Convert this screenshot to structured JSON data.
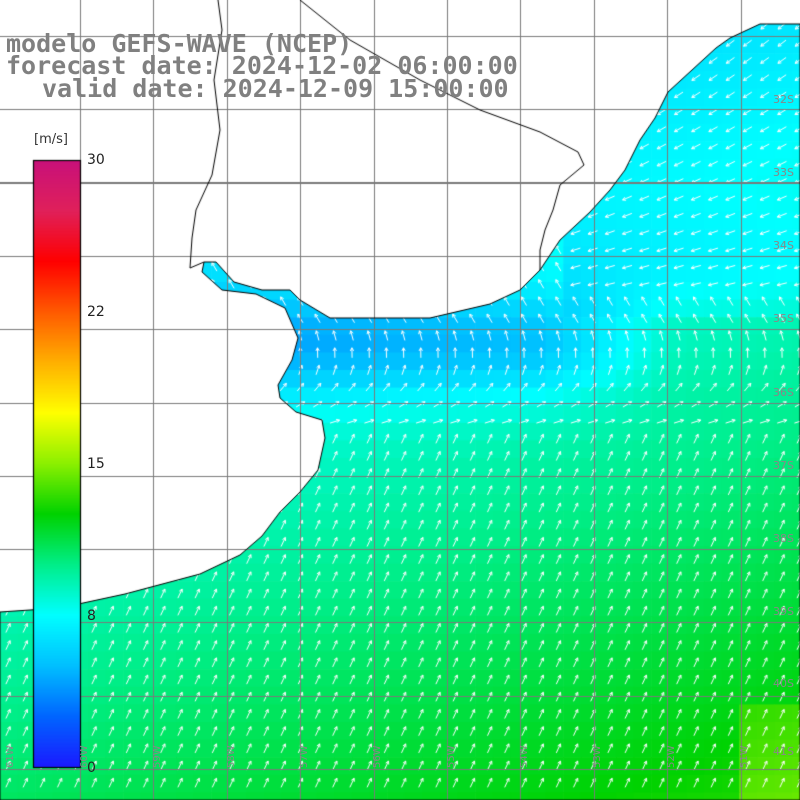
{
  "title": {
    "line1": "modelo GEFS-WAVE (NCEP)",
    "line2": "forecast date: 2024-12-02 06:00:00",
    "line3": "valid date: 2024-12-09 15:00:00"
  },
  "colorbar": {
    "unit": "[m/s]",
    "min": 0,
    "max": 30,
    "ticks": [
      0,
      8,
      15,
      22,
      30
    ],
    "colors": [
      "#1a1aff",
      "#0066ff",
      "#00c0ff",
      "#00ffff",
      "#00ee88",
      "#00d200",
      "#8cf000",
      "#ffff00",
      "#ffb000",
      "#ff5a00",
      "#ff0000",
      "#e0205a",
      "#c8107a"
    ]
  },
  "map": {
    "land_color": "#ffffff",
    "grid_color": "#7a7a7a",
    "coast_color": "#000000",
    "arrow_color": "#ffffff",
    "lat_labels": [
      "32S",
      "33S",
      "34S",
      "35S",
      "36S",
      "37S",
      "38S",
      "39S",
      "40S",
      "41S"
    ],
    "lon_labels": [
      "61W",
      "60W",
      "59W",
      "58W",
      "57W",
      "56W",
      "55W",
      "54W",
      "53W",
      "52W",
      "51W"
    ]
  }
}
